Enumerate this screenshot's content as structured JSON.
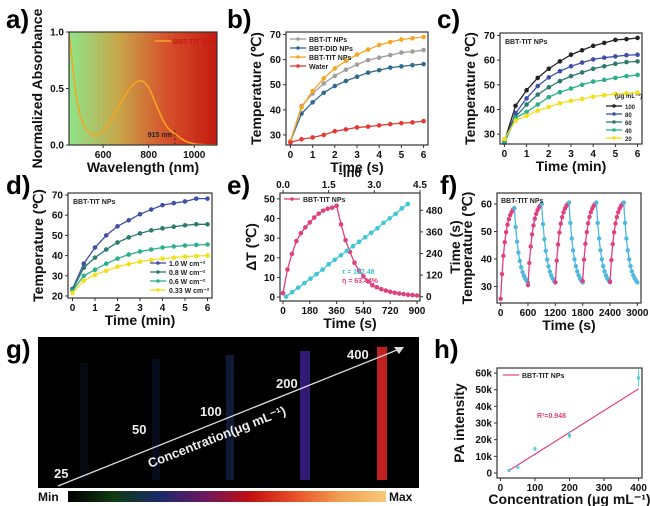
{
  "panel_labels": [
    "a)",
    "b)",
    "c)",
    "d)",
    "e)",
    "f)",
    "g)",
    "h)"
  ],
  "chart_data": [
    {
      "id": "a",
      "type": "line",
      "title": "",
      "xlabel": "Wavelength (nm)",
      "ylabel": "Normalized Absorbance",
      "xlim": [
        450,
        1100
      ],
      "ylim": [
        0,
        1.0
      ],
      "xticks": [
        600,
        800,
        1000
      ],
      "yticks": [
        0.0,
        0.5,
        1.0
      ],
      "ytick_labels": [
        "0.0",
        "0.5",
        "1.0"
      ],
      "background_gradient": [
        "#8ee58a",
        "#c8a64a",
        "#d5502a",
        "#c51a10"
      ],
      "annotation": "915 nm",
      "annotation_x": 915,
      "series": [
        {
          "name": "BBT-TIT NPs",
          "color": "#f5a623",
          "x": [
            450,
            460,
            470,
            480,
            490,
            500,
            520,
            540,
            560,
            580,
            600,
            620,
            640,
            660,
            680,
            700,
            720,
            740,
            760,
            780,
            800,
            820,
            840,
            860,
            880,
            900,
            915,
            940,
            960,
            980,
            1000,
            1020,
            1050,
            1100
          ],
          "y": [
            1.0,
            0.82,
            0.62,
            0.46,
            0.34,
            0.25,
            0.15,
            0.1,
            0.08,
            0.09,
            0.12,
            0.17,
            0.24,
            0.31,
            0.38,
            0.45,
            0.51,
            0.55,
            0.57,
            0.56,
            0.51,
            0.42,
            0.32,
            0.23,
            0.16,
            0.12,
            0.1,
            0.06,
            0.035,
            0.02,
            0.01,
            0.005,
            0.002,
            0.0
          ]
        }
      ]
    },
    {
      "id": "b",
      "type": "line",
      "xlabel": "Time (s)",
      "ylabel": "Temperature (℃)",
      "xlim": [
        -0.2,
        6.2
      ],
      "ylim": [
        26,
        71
      ],
      "xticks": [
        0,
        1,
        2,
        3,
        4,
        5,
        6
      ],
      "yticks": [
        30,
        40,
        50,
        60,
        70
      ],
      "x": [
        0,
        0.5,
        1,
        1.5,
        2,
        2.5,
        3,
        3.5,
        4,
        4.5,
        5,
        5.5,
        6
      ],
      "series": [
        {
          "name": "BBT-IT NPs",
          "color": "#9e9e9e",
          "values": [
            27.5,
            41.5,
            46.5,
            50.5,
            53.5,
            56,
            58,
            59.8,
            60.8,
            61.8,
            62.8,
            63.2,
            63.8
          ]
        },
        {
          "name": "BBT-DID NPs",
          "color": "#2e6a8e",
          "values": [
            27.5,
            38.5,
            43,
            46.8,
            49.5,
            51.5,
            53.2,
            54.8,
            55.8,
            56.8,
            57.3,
            57.8,
            58.2
          ]
        },
        {
          "name": "BBT-TIT NPs",
          "color": "#f5a623",
          "values": [
            27.5,
            41,
            47.5,
            52.5,
            56.5,
            59.5,
            62,
            64,
            65.8,
            67,
            68,
            68.5,
            69
          ]
        },
        {
          "name": "Water",
          "color": "#e53935",
          "values": [
            27,
            28.3,
            29,
            30,
            31.5,
            32.2,
            33,
            33.3,
            33.8,
            34.3,
            34.7,
            35,
            35.5
          ]
        }
      ]
    },
    {
      "id": "c",
      "type": "line",
      "annotation": "BBT-TIT NPs",
      "xlabel": "Time (min)",
      "ylabel": "Temperature (℃)",
      "xlim": [
        -0.2,
        6.2
      ],
      "ylim": [
        26,
        71
      ],
      "xticks": [
        0,
        1,
        2,
        3,
        4,
        5,
        6
      ],
      "yticks": [
        30,
        40,
        50,
        60,
        70
      ],
      "legend_title": "(μg mL⁻¹)",
      "x": [
        0,
        0.5,
        1,
        1.5,
        2,
        2.5,
        3,
        3.5,
        4,
        4.5,
        5,
        5.5,
        6
      ],
      "series": [
        {
          "name": "100",
          "color": "#222222",
          "values": [
            27,
            41.5,
            47.8,
            52.8,
            56.5,
            59.5,
            62.2,
            64,
            65.8,
            67,
            68.2,
            68.5,
            69
          ]
        },
        {
          "name": "80",
          "color": "#3f4fa8",
          "values": [
            27,
            38.5,
            44.5,
            49.5,
            53,
            55.5,
            57.5,
            59,
            60.3,
            61,
            61.5,
            62,
            62.2
          ]
        },
        {
          "name": "60",
          "color": "#2b7a6f",
          "values": [
            26.5,
            37,
            42,
            46,
            49,
            51.5,
            53.5,
            55,
            56.5,
            57.5,
            58.5,
            59.2,
            59.5
          ]
        },
        {
          "name": "40",
          "color": "#2ab08a",
          "values": [
            26.5,
            36.5,
            39,
            42,
            45,
            47,
            48.5,
            50,
            51.3,
            52,
            52.8,
            53.5,
            54
          ]
        },
        {
          "name": "20",
          "color": "#f2e01a",
          "values": [
            28,
            35.5,
            37.5,
            39.5,
            41,
            42.5,
            43.5,
            44.2,
            45.2,
            45.8,
            46.2,
            46.5,
            46.8
          ]
        }
      ]
    },
    {
      "id": "d",
      "type": "line",
      "annotation": "BBT-TIT NPs",
      "xlabel": "Time (min)",
      "ylabel": "Temperature (℃)",
      "xlim": [
        -0.2,
        6.2
      ],
      "ylim": [
        19,
        71
      ],
      "xticks": [
        0,
        1,
        2,
        3,
        4,
        5,
        6
      ],
      "yticks": [
        20,
        30,
        40,
        50,
        60,
        70
      ],
      "x": [
        0,
        0.5,
        1,
        1.5,
        2,
        2.5,
        3,
        3.5,
        4,
        4.5,
        5,
        5.5,
        6
      ],
      "series": [
        {
          "name": "1.0 W cm⁻²",
          "color": "#3f4fa8",
          "values": [
            23.5,
            36,
            44,
            50,
            54.5,
            57.5,
            60.5,
            62.8,
            65,
            66,
            66.8,
            68.2,
            68.2
          ]
        },
        {
          "name": "0.8 W cm⁻²",
          "color": "#2b7a6f",
          "values": [
            23,
            34,
            39,
            43,
            46.5,
            49,
            51,
            52.5,
            53.5,
            54.3,
            55,
            55.5,
            55.5
          ]
        },
        {
          "name": "0.6 W cm⁻²",
          "color": "#2ab08a",
          "values": [
            22.5,
            30,
            33,
            36,
            38.5,
            40.5,
            42,
            43,
            44,
            44.5,
            45,
            45.3,
            45.5
          ]
        },
        {
          "name": "0.33 W cm⁻²",
          "color": "#f2e01a",
          "values": [
            21.5,
            27.5,
            30.5,
            32.5,
            34.5,
            35.8,
            37,
            37.8,
            38.5,
            39,
            39.5,
            39.8,
            40
          ]
        }
      ]
    },
    {
      "id": "e",
      "type": "line",
      "xlabel": "Time (s)",
      "ylabel": "ΔT (℃)",
      "x2label": "-lnθ",
      "y2label": "Time (s)",
      "xlim": [
        -20,
        920
      ],
      "ylim": [
        -2,
        53
      ],
      "x2lim": [
        -0.1,
        4.5
      ],
      "y2lim": [
        -24,
        576
      ],
      "xticks": [
        0,
        180,
        360,
        540,
        720,
        900
      ],
      "yticks": [
        0,
        10,
        20,
        30,
        40,
        50
      ],
      "x2ticks": [
        "0.0",
        "1.5",
        "3.0",
        "4.5"
      ],
      "y2ticks": [
        0,
        120,
        240,
        360,
        480
      ],
      "annotations": [
        {
          "text": "τ = 132.48",
          "color": "#3cc8d8"
        },
        {
          "text": "η = 63.44%",
          "color": "#e0407e"
        }
      ],
      "series": [
        {
          "name": "BBT-TIT NPs",
          "color": "#e0407e",
          "axis": "primary",
          "x": [
            0,
            30,
            60,
            90,
            120,
            150,
            180,
            210,
            240,
            270,
            300,
            330,
            360,
            390,
            420,
            450,
            480,
            510,
            540,
            570,
            600,
            630,
            660,
            690,
            720,
            750,
            780,
            810,
            840,
            870,
            900
          ],
          "y": [
            2,
            14,
            22,
            28.5,
            32.5,
            35.5,
            38,
            40.5,
            42.5,
            44,
            45,
            45.5,
            46.5,
            37,
            29,
            23,
            17.5,
            13.5,
            10.5,
            8,
            6,
            5,
            4,
            3.3,
            2.7,
            2.2,
            1.8,
            1.5,
            1.2,
            1,
            0.8
          ]
        },
        {
          "name": "-lnθ fit",
          "color": "#3cc8d8",
          "axis": "secondary",
          "x": [
            0.1,
            0.3,
            0.5,
            0.7,
            0.9,
            1.1,
            1.3,
            1.5,
            1.7,
            1.9,
            2.1,
            2.3,
            2.5,
            2.7,
            2.9,
            3.1,
            3.3,
            3.5,
            3.7,
            3.9,
            4.1
          ],
          "y": [
            0,
            25,
            50,
            75,
            100,
            125,
            150,
            180,
            205,
            230,
            255,
            280,
            305,
            330,
            355,
            380,
            410,
            435,
            460,
            490,
            515
          ]
        }
      ]
    },
    {
      "id": "f",
      "type": "line",
      "annotation": "BBT-TIT NPs",
      "xlabel": "Time (s)",
      "ylabel": "Temperature (℃)",
      "xlim": [
        -80,
        3080
      ],
      "ylim": [
        24,
        64
      ],
      "xticks": [
        0,
        600,
        1200,
        1800,
        2400,
        3000
      ],
      "yticks": [
        30,
        40,
        50,
        60
      ],
      "cycles": 5,
      "heating_color": "#e0407e",
      "cooling_color": "#4fb8e0",
      "cycle_start_temps": [
        25.5,
        30.5,
        31.5,
        32,
        31.8
      ],
      "cycle_peak_temps": [
        58.5,
        60,
        60.5,
        60.5,
        60.5
      ],
      "cycle_end_temp": 31.5,
      "cycle_period_s": 600
    },
    {
      "id": "g",
      "type": "heatmap",
      "title": "",
      "concentrations": [
        "25",
        "50",
        "100",
        "200",
        "400"
      ],
      "arrow_label": "Concentration(μg mL⁻¹)",
      "colorbar_min": "Min",
      "colorbar_max": "Max",
      "colorbar_colors": [
        "#000000",
        "#0f3a10",
        "#1a2a6a",
        "#6a1860",
        "#c01010",
        "#e8502a",
        "#f0a050",
        "#f8c878"
      ],
      "stripe_intensities": [
        0.05,
        0.08,
        0.2,
        0.45,
        0.9
      ]
    },
    {
      "id": "h",
      "type": "scatter",
      "xlabel": "Concentration (μg mL⁻¹)",
      "ylabel": "PA intensity",
      "xlim": [
        -10,
        410
      ],
      "ylim": [
        -3000,
        63000
      ],
      "xticks": [
        0,
        100,
        200,
        300,
        400
      ],
      "yticks": [
        0,
        10000,
        20000,
        30000,
        40000,
        50000,
        60000
      ],
      "ytick_labels": [
        "0",
        "10k",
        "20k",
        "30k",
        "40k",
        "50k",
        "60k"
      ],
      "annotation": "R²=0.948",
      "legend": "BBT-TIT NPs",
      "fit_line": {
        "x": [
          25,
          400
        ],
        "y": [
          1500,
          50500
        ],
        "color": "#e0407e"
      },
      "points": [
        {
          "x": 25,
          "y": 1500,
          "err": 500
        },
        {
          "x": 50,
          "y": 3500,
          "err": 1000
        },
        {
          "x": 100,
          "y": 14500,
          "err": 1500
        },
        {
          "x": 200,
          "y": 22500,
          "err": 2000
        },
        {
          "x": 400,
          "y": 57000,
          "err": 5000
        }
      ],
      "point_color": "#4fd0e0"
    }
  ]
}
